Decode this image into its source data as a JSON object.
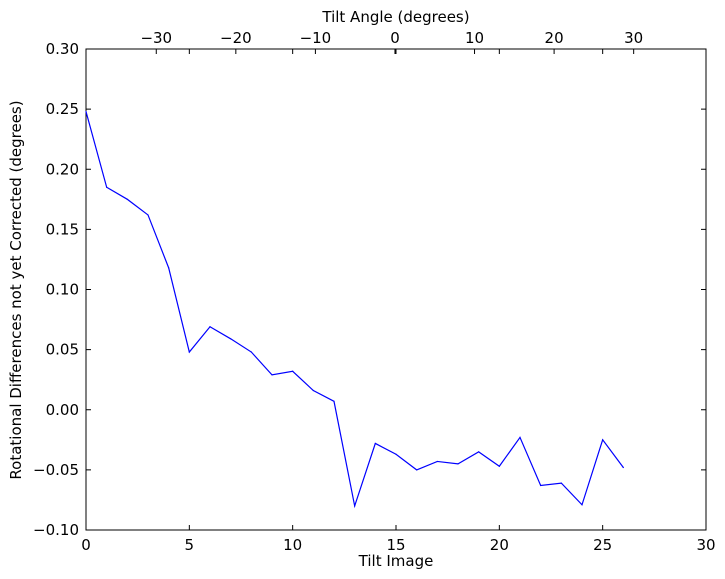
{
  "chart_data": {
    "type": "line",
    "xlabel": "Tilt Image",
    "ylabel": "Rotational Differences not yet Corrected (degrees)",
    "top_xlabel": "Tilt Angle (degrees)",
    "xlim": [
      0,
      30
    ],
    "ylim": [
      -0.1,
      0.3
    ],
    "x_ticks": [
      0,
      5,
      10,
      15,
      20,
      25,
      30
    ],
    "x_tick_labels": [
      "0",
      "5",
      "10",
      "15",
      "20",
      "25",
      "30"
    ],
    "y_ticks": [
      -0.1,
      -0.05,
      0.0,
      0.05,
      0.1,
      0.15,
      0.2,
      0.25,
      0.3
    ],
    "y_tick_labels": [
      "−0.10",
      "−0.05",
      "0.00",
      "0.05",
      "0.10",
      "0.15",
      "0.20",
      "0.25",
      "0.30"
    ],
    "top_x_tick_labels": [
      "−30",
      "−20",
      "−10",
      "0",
      "10",
      "20",
      "30"
    ],
    "top_x_tick_positions": [
      3.4,
      7.25,
      11.1,
      14.95,
      18.8,
      22.65,
      26.5
    ],
    "grid": false,
    "series": [
      {
        "color": "#0000ff",
        "x": [
          0,
          1,
          2,
          3,
          4,
          5,
          6,
          7,
          8,
          9,
          10,
          11,
          12,
          13,
          14,
          15,
          16,
          17,
          18,
          19,
          20,
          21,
          22,
          23,
          24,
          25,
          26
        ],
        "y": [
          0.248,
          0.185,
          0.175,
          0.162,
          0.118,
          0.048,
          0.069,
          0.059,
          0.048,
          0.029,
          0.032,
          0.016,
          0.007,
          -0.08,
          -0.028,
          -0.037,
          -0.05,
          -0.043,
          -0.045,
          -0.035,
          -0.047,
          -0.023,
          -0.063,
          -0.061,
          -0.079,
          -0.025,
          -0.048
        ]
      }
    ]
  }
}
